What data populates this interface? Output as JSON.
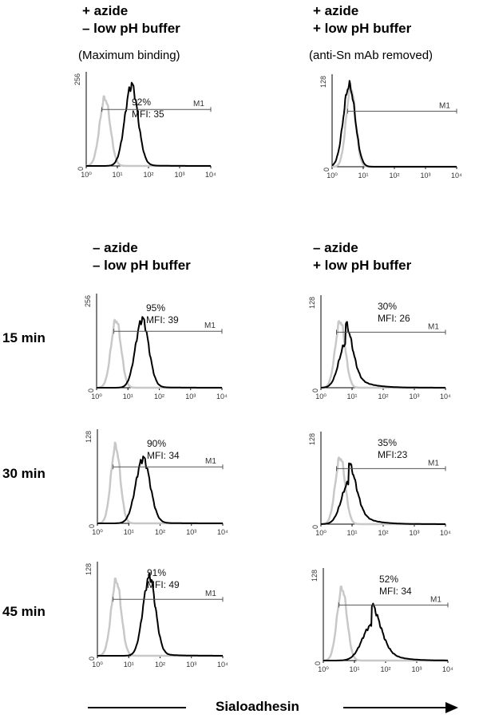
{
  "headers": {
    "top_left": [
      "+ azide",
      "– low pH buffer"
    ],
    "top_right": [
      "+ azide",
      "+ low pH buffer"
    ],
    "mid_left": [
      "– azide",
      "– low pH buffer"
    ],
    "mid_right": [
      "– azide",
      "+ low pH buffer"
    ]
  },
  "subtitles": {
    "top_left": "(Maximum binding)",
    "top_right": "(anti-Sn mAb removed)"
  },
  "row_labels": [
    "15 min",
    "30 min",
    "45 min"
  ],
  "x_axis_label": "Sialoadhesin",
  "colors": {
    "control": "#c8c8c8",
    "sample": "#000000",
    "gate": "#555555"
  },
  "chart_data": [
    {
      "type": "area",
      "id": "p1",
      "ymax_label": "256",
      "ylim": [
        0,
        256
      ],
      "xlim": [
        0,
        4
      ],
      "xscale": "log",
      "x_ticks": [
        "10⁰",
        "10¹",
        "10²",
        "10³",
        "10⁴"
      ],
      "gate": {
        "label": "M1",
        "from_log": 0.5,
        "to_log": 4
      },
      "percent": "92%",
      "mfi": "MFI: 35",
      "series": [
        {
          "name": "",
          "role": "control",
          "peak_log": 0.6,
          "width": 0.17,
          "peak": 0.72,
          "tail": 0.0
        },
        {
          "name": "",
          "role": "sample",
          "peak_log": 1.45,
          "width": 0.21,
          "peak": 0.85,
          "tail": 0.02
        }
      ]
    },
    {
      "type": "area",
      "id": "p2",
      "ymax_label": "128",
      "ylim": [
        0,
        128
      ],
      "xlim": [
        0,
        4
      ],
      "xscale": "log",
      "x_ticks": [
        "10⁰",
        "10¹",
        "10²",
        "10³",
        "10⁴"
      ],
      "gate": {
        "label": "M1",
        "from_log": 0.5,
        "to_log": 4
      },
      "percent": "",
      "mfi": "",
      "series": [
        {
          "name": "",
          "role": "control",
          "peak_log": 0.6,
          "width": 0.15,
          "peak": 0.86,
          "tail": 0.0
        },
        {
          "name": "",
          "role": "sample",
          "peak_log": 0.55,
          "width": 0.19,
          "peak": 0.88,
          "tail": 0.0
        }
      ]
    },
    {
      "type": "area",
      "id": "p3",
      "ymax_label": "256",
      "ylim": [
        0,
        256
      ],
      "xlim": [
        0,
        4
      ],
      "xscale": "log",
      "x_ticks": [
        "10⁰",
        "10¹",
        "10²",
        "10³",
        "10⁴"
      ],
      "gate": {
        "label": "M1",
        "from_log": 0.55,
        "to_log": 4
      },
      "percent": "95%",
      "mfi": "MFI: 39",
      "series": [
        {
          "name": "",
          "role": "control",
          "peak_log": 0.62,
          "width": 0.16,
          "peak": 0.72,
          "tail": 0.0
        },
        {
          "name": "",
          "role": "sample",
          "peak_log": 1.45,
          "width": 0.21,
          "peak": 0.72,
          "tail": 0.02
        }
      ]
    },
    {
      "type": "area",
      "id": "p4",
      "ymax_label": "128",
      "ylim": [
        0,
        128
      ],
      "xlim": [
        0,
        4
      ],
      "xscale": "log",
      "x_ticks": [
        "10⁰",
        "10¹",
        "10²",
        "10³",
        "10⁴"
      ],
      "gate": {
        "label": "M1",
        "from_log": 0.5,
        "to_log": 4
      },
      "percent": "30%",
      "mfi": "MFI: 26",
      "series": [
        {
          "name": "",
          "role": "control",
          "peak_log": 0.62,
          "width": 0.16,
          "peak": 0.72,
          "tail": 0.0
        },
        {
          "name": "",
          "role": "sample",
          "peak_log": 0.8,
          "width": 0.22,
          "peak": 0.48,
          "tail": 0.22
        }
      ]
    },
    {
      "type": "area",
      "id": "p5",
      "ymax_label": "128",
      "ylim": [
        0,
        128
      ],
      "xlim": [
        0,
        4
      ],
      "xscale": "log",
      "x_ticks": [
        "10⁰",
        "10¹",
        "10²",
        "10³",
        "10⁴"
      ],
      "gate": {
        "label": "M1",
        "from_log": 0.5,
        "to_log": 4
      },
      "percent": "90%",
      "mfi": "MFI: 34",
      "series": [
        {
          "name": "",
          "role": "control",
          "peak_log": 0.58,
          "width": 0.15,
          "peak": 0.82,
          "tail": 0.0
        },
        {
          "name": "",
          "role": "sample",
          "peak_log": 1.45,
          "width": 0.23,
          "peak": 0.68,
          "tail": 0.02
        }
      ]
    },
    {
      "type": "area",
      "id": "p6",
      "ymax_label": "128",
      "ylim": [
        0,
        128
      ],
      "xlim": [
        0,
        4
      ],
      "xscale": "log",
      "x_ticks": [
        "10⁰",
        "10¹",
        "10²",
        "10³",
        "10⁴"
      ],
      "gate": {
        "label": "M1",
        "from_log": 0.5,
        "to_log": 4
      },
      "percent": "35%",
      "mfi": "MFI:23",
      "series": [
        {
          "name": "",
          "role": "control",
          "peak_log": 0.62,
          "width": 0.16,
          "peak": 0.72,
          "tail": 0.0
        },
        {
          "name": "",
          "role": "sample",
          "peak_log": 0.9,
          "width": 0.24,
          "peak": 0.45,
          "tail": 0.22
        }
      ]
    },
    {
      "type": "area",
      "id": "p7",
      "ymax_label": "128",
      "ylim": [
        0,
        128
      ],
      "xlim": [
        0,
        4
      ],
      "xscale": "log",
      "x_ticks": [
        "10⁰",
        "10¹",
        "10²",
        "10³",
        "10⁴"
      ],
      "gate": {
        "label": "M1",
        "from_log": 0.5,
        "to_log": 4
      },
      "percent": "91%",
      "mfi": "MFI: 49",
      "series": [
        {
          "name": "",
          "role": "control",
          "peak_log": 0.6,
          "width": 0.16,
          "peak": 0.8,
          "tail": 0.0
        },
        {
          "name": "",
          "role": "sample",
          "peak_log": 1.65,
          "width": 0.2,
          "peak": 0.82,
          "tail": 0.04
        }
      ]
    },
    {
      "type": "area",
      "id": "p8",
      "ymax_label": "128",
      "ylim": [
        0,
        128
      ],
      "xlim": [
        0,
        4
      ],
      "xscale": "log",
      "x_ticks": [
        "10⁰",
        "10¹",
        "10²",
        "10³",
        "10⁴"
      ],
      "gate": {
        "label": "M1",
        "from_log": 0.5,
        "to_log": 4
      },
      "percent": "52%",
      "mfi": "MFI: 34",
      "series": [
        {
          "name": "",
          "role": "control",
          "peak_log": 0.6,
          "width": 0.16,
          "peak": 0.78,
          "tail": 0.0
        },
        {
          "name": "",
          "role": "sample",
          "peak_log": 1.55,
          "width": 0.3,
          "peak": 0.38,
          "tail": 0.25
        }
      ]
    }
  ]
}
